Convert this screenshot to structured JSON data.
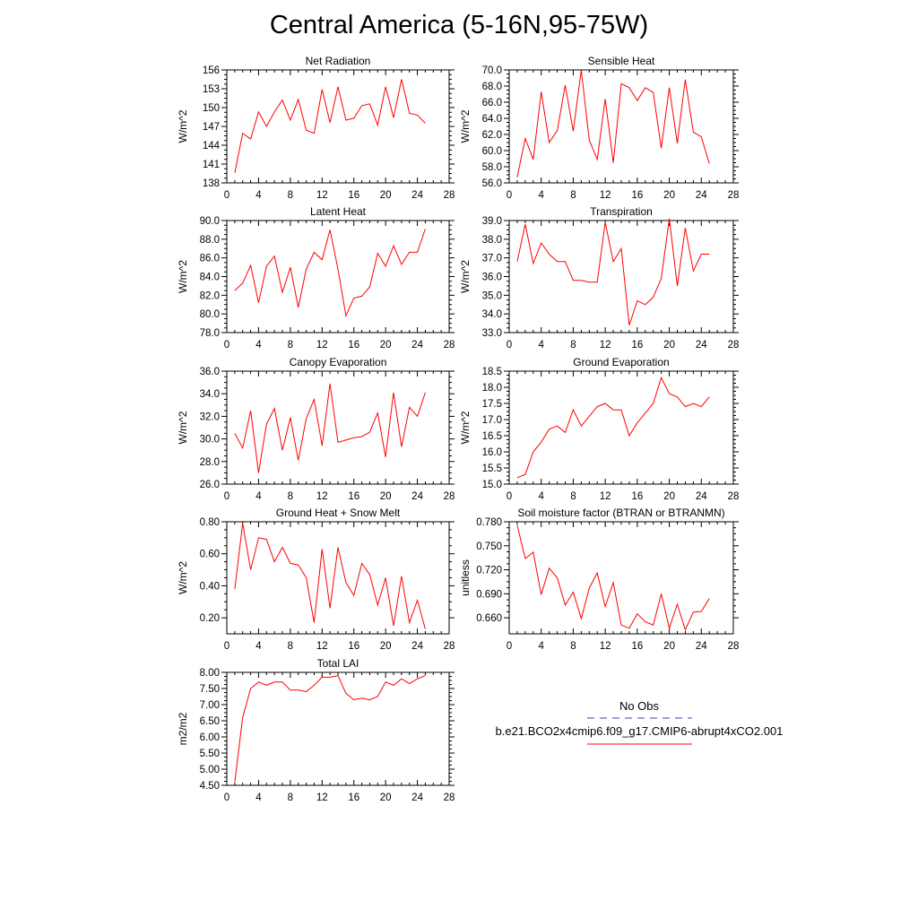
{
  "title": "Central America (5-16N,95-75W)",
  "line_color": "#ff0000",
  "obs_color": "#3f3fb0",
  "legend": {
    "obs_label": "No Obs",
    "model_label": "b.e21.BCO2x4cmip6.f09_g17.CMIP6-abrupt4xCO2.001"
  },
  "chart_data": [
    {
      "type": "line",
      "title": "Net Radiation",
      "ylabel": "W/m^2",
      "xlabel": "",
      "xlim": [
        0,
        28
      ],
      "ylim": [
        138,
        156
      ],
      "xticks": [
        0,
        4,
        8,
        12,
        16,
        20,
        24,
        28
      ],
      "xtick_labels": [
        "0",
        "4",
        "8",
        "12",
        "16",
        "20",
        "24",
        "28"
      ],
      "yticks": [
        138,
        141,
        144,
        147,
        150,
        153,
        156
      ],
      "ytick_labels": [
        "138",
        "141",
        "144",
        "147",
        "150",
        "153",
        "156"
      ],
      "x": [
        1,
        2,
        3,
        4,
        5,
        6,
        7,
        8,
        9,
        10,
        11,
        12,
        13,
        14,
        15,
        16,
        17,
        18,
        19,
        20,
        21,
        22,
        23,
        24,
        25
      ],
      "y": [
        139.6,
        145.9,
        145.0,
        149.3,
        147.0,
        149.3,
        151.2,
        148.0,
        151.3,
        146.4,
        145.9,
        152.9,
        147.6,
        153.3,
        148.0,
        148.3,
        150.3,
        150.6,
        147.2,
        153.3,
        148.4,
        154.5,
        149.1,
        148.8,
        147.5
      ]
    },
    {
      "type": "line",
      "title": "Sensible Heat",
      "ylabel": "W/m^2",
      "xlabel": "",
      "xlim": [
        0,
        28
      ],
      "ylim": [
        56,
        70
      ],
      "xticks": [
        0,
        4,
        8,
        12,
        16,
        20,
        24,
        28
      ],
      "xtick_labels": [
        "0",
        "4",
        "8",
        "12",
        "16",
        "20",
        "24",
        "28"
      ],
      "yticks": [
        56,
        58,
        60,
        62,
        64,
        66,
        68,
        70
      ],
      "ytick_labels": [
        "56.0",
        "58.0",
        "60.0",
        "62.0",
        "64.0",
        "66.0",
        "68.0",
        "70.0"
      ],
      "x": [
        1,
        2,
        3,
        4,
        5,
        6,
        7,
        8,
        9,
        10,
        11,
        12,
        13,
        14,
        15,
        16,
        17,
        18,
        19,
        20,
        21,
        22,
        23,
        24,
        25
      ],
      "y": [
        56.7,
        61.5,
        58.9,
        67.3,
        61.0,
        62.5,
        68.1,
        62.4,
        70.0,
        61.3,
        58.9,
        66.4,
        58.5,
        68.3,
        67.8,
        66.2,
        67.8,
        67.2,
        60.3,
        67.8,
        60.9,
        68.8,
        62.3,
        61.7,
        58.4
      ]
    },
    {
      "type": "line",
      "title": "Latent Heat",
      "ylabel": "W/m^2",
      "xlabel": "",
      "xlim": [
        0,
        28
      ],
      "ylim": [
        78,
        90
      ],
      "xticks": [
        0,
        4,
        8,
        12,
        16,
        20,
        24,
        28
      ],
      "xtick_labels": [
        "0",
        "4",
        "8",
        "12",
        "16",
        "20",
        "24",
        "28"
      ],
      "yticks": [
        78,
        80,
        82,
        84,
        86,
        88,
        90
      ],
      "ytick_labels": [
        "78.0",
        "80.0",
        "82.0",
        "84.0",
        "86.0",
        "88.0",
        "90.0"
      ],
      "x": [
        1,
        2,
        3,
        4,
        5,
        6,
        7,
        8,
        9,
        10,
        11,
        12,
        13,
        14,
        15,
        16,
        17,
        18,
        19,
        20,
        21,
        22,
        23,
        24,
        25
      ],
      "y": [
        82.5,
        83.3,
        85.2,
        81.2,
        85.1,
        86.2,
        82.3,
        85.0,
        80.7,
        84.8,
        86.6,
        85.8,
        89.0,
        84.8,
        79.8,
        81.7,
        81.9,
        82.9,
        86.5,
        85.1,
        87.3,
        85.3,
        86.6,
        86.6,
        89.1
      ]
    },
    {
      "type": "line",
      "title": "Transpiration",
      "ylabel": "W/m^2",
      "xlabel": "",
      "xlim": [
        0,
        28
      ],
      "ylim": [
        33,
        39
      ],
      "xticks": [
        0,
        4,
        8,
        12,
        16,
        20,
        24,
        28
      ],
      "xtick_labels": [
        "0",
        "4",
        "8",
        "12",
        "16",
        "20",
        "24",
        "28"
      ],
      "yticks": [
        33,
        34,
        35,
        36,
        37,
        38,
        39
      ],
      "ytick_labels": [
        "33.0",
        "34.0",
        "35.0",
        "36.0",
        "37.0",
        "38.0",
        "39.0"
      ],
      "x": [
        1,
        2,
        3,
        4,
        5,
        6,
        7,
        8,
        9,
        10,
        11,
        12,
        13,
        14,
        15,
        16,
        17,
        18,
        19,
        20,
        21,
        22,
        23,
        24,
        25
      ],
      "y": [
        36.8,
        38.8,
        36.7,
        37.8,
        37.2,
        36.8,
        36.8,
        35.8,
        35.8,
        35.7,
        35.7,
        38.9,
        36.8,
        37.5,
        33.4,
        34.7,
        34.5,
        34.9,
        35.9,
        39.1,
        35.5,
        38.6,
        36.3,
        37.2,
        37.2
      ]
    },
    {
      "type": "line",
      "title": "Canopy Evaporation",
      "ylabel": "W/m^2",
      "xlabel": "",
      "xlim": [
        0,
        28
      ],
      "ylim": [
        26,
        36
      ],
      "xticks": [
        0,
        4,
        8,
        12,
        16,
        20,
        24,
        28
      ],
      "xtick_labels": [
        "0",
        "4",
        "8",
        "12",
        "16",
        "20",
        "24",
        "28"
      ],
      "yticks": [
        26,
        28,
        30,
        32,
        34,
        36
      ],
      "ytick_labels": [
        "26.0",
        "28.0",
        "30.0",
        "32.0",
        "34.0",
        "36.0"
      ],
      "x": [
        1,
        2,
        3,
        4,
        5,
        6,
        7,
        8,
        9,
        10,
        11,
        12,
        13,
        14,
        15,
        16,
        17,
        18,
        19,
        20,
        21,
        22,
        23,
        24,
        25
      ],
      "y": [
        30.5,
        29.2,
        32.5,
        27.0,
        31.3,
        32.7,
        29.0,
        31.9,
        28.1,
        31.8,
        33.5,
        29.4,
        34.9,
        29.7,
        29.9,
        30.1,
        30.2,
        30.6,
        32.3,
        28.4,
        34.1,
        29.3,
        32.8,
        32.0,
        34.1
      ]
    },
    {
      "type": "line",
      "title": "Ground Evaporation",
      "ylabel": "W/m^2",
      "xlabel": "",
      "xlim": [
        0,
        28
      ],
      "ylim": [
        15,
        18.5
      ],
      "xticks": [
        0,
        4,
        8,
        12,
        16,
        20,
        24,
        28
      ],
      "xtick_labels": [
        "0",
        "4",
        "8",
        "12",
        "16",
        "20",
        "24",
        "28"
      ],
      "yticks": [
        15,
        15.5,
        16,
        16.5,
        17,
        17.5,
        18,
        18.5
      ],
      "ytick_labels": [
        "15.0",
        "15.5",
        "16.0",
        "16.5",
        "17.0",
        "17.5",
        "18.0",
        "18.5"
      ],
      "x": [
        1,
        2,
        3,
        4,
        5,
        6,
        7,
        8,
        9,
        10,
        11,
        12,
        13,
        14,
        15,
        16,
        17,
        18,
        19,
        20,
        21,
        22,
        23,
        24,
        25
      ],
      "y": [
        15.2,
        15.3,
        16.0,
        16.3,
        16.7,
        16.8,
        16.6,
        17.3,
        16.8,
        17.1,
        17.4,
        17.5,
        17.3,
        17.3,
        16.5,
        16.9,
        17.2,
        17.5,
        18.3,
        17.8,
        17.7,
        17.4,
        17.5,
        17.4,
        17.7
      ]
    },
    {
      "type": "line",
      "title": "Ground Heat + Snow Melt",
      "ylabel": "W/m^2",
      "xlabel": "",
      "xlim": [
        0,
        28
      ],
      "ylim": [
        0.1,
        0.8
      ],
      "xticks": [
        0,
        4,
        8,
        12,
        16,
        20,
        24,
        28
      ],
      "xtick_labels": [
        "0",
        "4",
        "8",
        "12",
        "16",
        "20",
        "24",
        "28"
      ],
      "yticks": [
        0.2,
        0.4,
        0.6,
        0.8
      ],
      "ytick_labels": [
        "0.20",
        "0.40",
        "0.60",
        "0.80"
      ],
      "x": [
        1,
        2,
        3,
        4,
        5,
        6,
        7,
        8,
        9,
        10,
        11,
        12,
        13,
        14,
        15,
        16,
        17,
        18,
        19,
        20,
        21,
        22,
        23,
        24,
        25
      ],
      "y": [
        0.38,
        0.79,
        0.5,
        0.7,
        0.69,
        0.55,
        0.64,
        0.54,
        0.53,
        0.45,
        0.17,
        0.63,
        0.26,
        0.64,
        0.42,
        0.34,
        0.54,
        0.47,
        0.28,
        0.45,
        0.15,
        0.46,
        0.17,
        0.31,
        0.13
      ]
    },
    {
      "type": "line",
      "title": "Soil moisture factor (BTRAN or BTRANMN)",
      "ylabel": "unitless",
      "xlabel": "",
      "xlim": [
        0,
        28
      ],
      "ylim": [
        0.64,
        0.78
      ],
      "xticks": [
        0,
        4,
        8,
        12,
        16,
        20,
        24,
        28
      ],
      "xtick_labels": [
        "0",
        "4",
        "8",
        "12",
        "16",
        "20",
        "24",
        "28"
      ],
      "yticks": [
        0.66,
        0.69,
        0.72,
        0.75,
        0.78
      ],
      "ytick_labels": [
        "0.660",
        "0.690",
        "0.720",
        "0.750",
        "0.780"
      ],
      "x": [
        1,
        2,
        3,
        4,
        5,
        6,
        7,
        8,
        9,
        10,
        11,
        12,
        13,
        14,
        15,
        16,
        17,
        18,
        19,
        20,
        21,
        22,
        23,
        24,
        25
      ],
      "y": [
        0.776,
        0.734,
        0.742,
        0.689,
        0.722,
        0.71,
        0.676,
        0.692,
        0.659,
        0.697,
        0.716,
        0.674,
        0.704,
        0.651,
        0.647,
        0.665,
        0.655,
        0.651,
        0.69,
        0.647,
        0.677,
        0.645,
        0.667,
        0.668,
        0.684
      ]
    },
    {
      "type": "line",
      "title": "Total LAI",
      "ylabel": "m2/m2",
      "xlabel": "",
      "xlim": [
        0,
        28
      ],
      "ylim": [
        4.5,
        8
      ],
      "xticks": [
        0,
        4,
        8,
        12,
        16,
        20,
        24,
        28
      ],
      "xtick_labels": [
        "0",
        "4",
        "8",
        "12",
        "16",
        "20",
        "24",
        "28"
      ],
      "yticks": [
        4.5,
        5,
        5.5,
        6,
        6.5,
        7,
        7.5,
        8
      ],
      "ytick_labels": [
        "4.50",
        "5.00",
        "5.50",
        "6.00",
        "6.50",
        "7.00",
        "7.50",
        "8.00"
      ],
      "x": [
        1,
        2,
        3,
        4,
        5,
        6,
        7,
        8,
        9,
        10,
        11,
        12,
        13,
        14,
        15,
        16,
        17,
        18,
        19,
        20,
        21,
        22,
        23,
        24,
        25
      ],
      "y": [
        4.6,
        6.6,
        7.5,
        7.7,
        7.6,
        7.7,
        7.7,
        7.45,
        7.45,
        7.4,
        7.6,
        7.85,
        7.85,
        7.9,
        7.35,
        7.15,
        7.2,
        7.15,
        7.25,
        7.7,
        7.6,
        7.8,
        7.65,
        7.8,
        7.9
      ]
    }
  ]
}
